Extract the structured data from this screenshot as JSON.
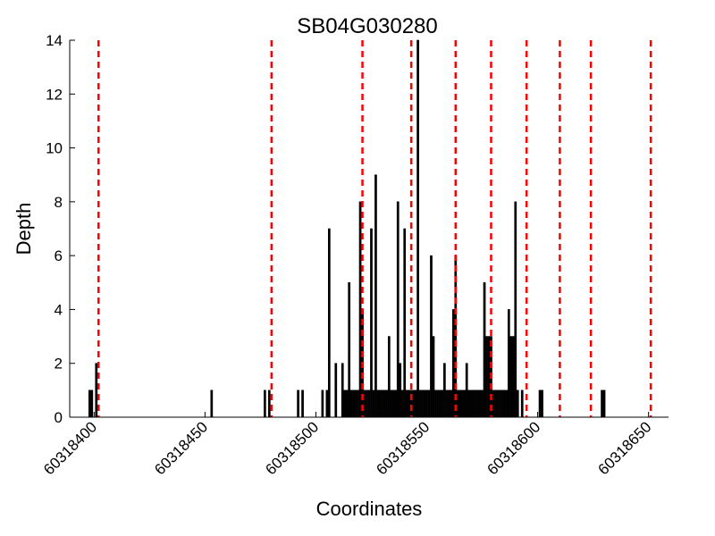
{
  "chart_data": {
    "type": "bar",
    "title": "SB04G030280",
    "xlabel": "Coordinates",
    "ylabel": "Depth",
    "xlim": [
      60318389,
      60318659
    ],
    "ylim": [
      0,
      14
    ],
    "grid": false,
    "legend": "none",
    "colors": {
      "bar_fill": "#000000",
      "bar_edge": "#000000",
      "marker_line": "#ff0000",
      "axis": "#000000"
    },
    "x_ticks": [
      60318400,
      60318450,
      60318500,
      60318550,
      60318600,
      60318650
    ],
    "x_tick_labels": [
      "60318400",
      "60318450",
      "60318500",
      "60318550",
      "60318600",
      "60318650"
    ],
    "y_ticks": [
      0,
      2,
      4,
      6,
      8,
      10,
      12,
      14
    ],
    "y_tick_labels": [
      "0",
      "2",
      "4",
      "6",
      "8",
      "10",
      "12",
      "14"
    ],
    "series": [
      {
        "x": [
          60318398,
          60318399,
          60318401,
          60318453,
          60318477,
          60318479,
          60318492,
          60318494,
          60318503,
          60318505,
          60318506,
          60318509,
          60318512,
          60318513,
          60318514,
          60318515,
          60318516,
          60318517,
          60318518,
          60318519,
          60318520,
          60318521,
          60318522,
          60318523,
          60318524,
          60318525,
          60318526,
          60318527,
          60318528,
          60318529,
          60318530,
          60318531,
          60318532,
          60318533,
          60318534,
          60318535,
          60318536,
          60318537,
          60318538,
          60318539,
          60318540,
          60318541,
          60318542,
          60318543,
          60318544,
          60318545,
          60318546,
          60318547,
          60318548,
          60318549,
          60318550,
          60318551,
          60318552,
          60318553,
          60318554,
          60318555,
          60318556,
          60318557,
          60318558,
          60318559,
          60318560,
          60318561,
          60318562,
          60318563,
          60318564,
          60318565,
          60318566,
          60318567,
          60318568,
          60318569,
          60318570,
          60318571,
          60318572,
          60318573,
          60318574,
          60318575,
          60318576,
          60318577,
          60318578,
          60318579,
          60318580,
          60318581,
          60318582,
          60318583,
          60318584,
          60318585,
          60318586,
          60318587,
          60318588,
          60318589,
          60318590,
          60318591,
          60318593,
          60318601,
          60318602,
          60318629,
          60318630
        ],
        "values": [
          1,
          1,
          2,
          1,
          1,
          1,
          1,
          1,
          1,
          1,
          7,
          2,
          2,
          1,
          1,
          5,
          1,
          1,
          1,
          1,
          8,
          4,
          1,
          1,
          1,
          7,
          1,
          9,
          1,
          1,
          1,
          1,
          1,
          3,
          1,
          1,
          1,
          8,
          2,
          1,
          7,
          1,
          1,
          1,
          1,
          1,
          14,
          1,
          1,
          1,
          1,
          1,
          6,
          3,
          1,
          1,
          1,
          1,
          2,
          1,
          1,
          1,
          4,
          6,
          1,
          1,
          1,
          1,
          2,
          1,
          1,
          1,
          1,
          1,
          1,
          1,
          5,
          3,
          3,
          3,
          1,
          1,
          1,
          1,
          1,
          1,
          1,
          4,
          3,
          3,
          8,
          1,
          1,
          1,
          1,
          1,
          1
        ]
      }
    ],
    "marker_lines": [
      60318402,
      60318480,
      60318521,
      60318543,
      60318563,
      60318579,
      60318595,
      60318610,
      60318624,
      60318651
    ]
  }
}
